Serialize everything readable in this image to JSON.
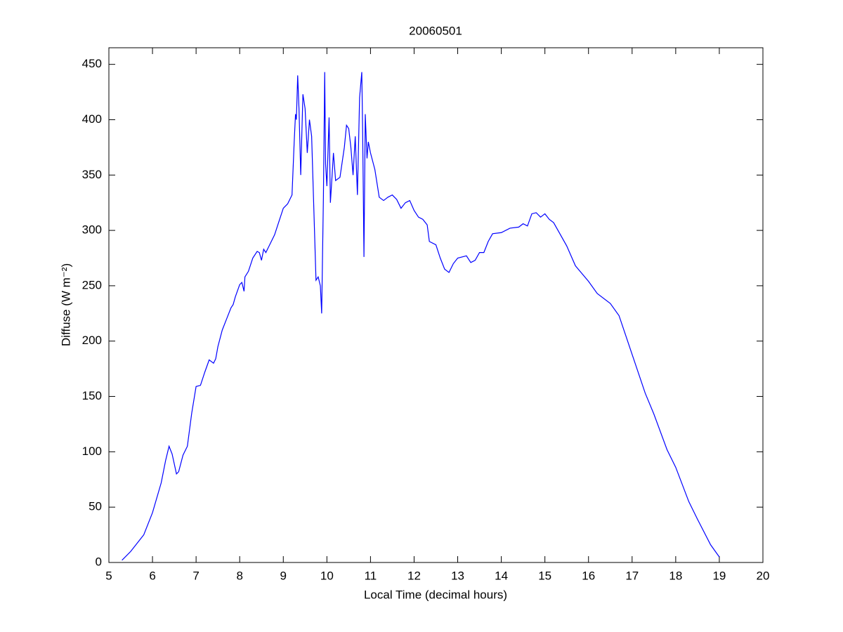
{
  "chart_data": {
    "type": "line",
    "title": "20060501",
    "x_label": "Local Time (decimal hours)",
    "y_label": "Diffuse (W m⁻²)",
    "xlim": [
      5,
      20
    ],
    "ylim": [
      0,
      465
    ],
    "xticks": [
      5,
      6,
      7,
      8,
      9,
      10,
      11,
      12,
      13,
      14,
      15,
      16,
      17,
      18,
      19,
      20
    ],
    "yticks": [
      0,
      50,
      100,
      150,
      200,
      250,
      300,
      350,
      400,
      450
    ],
    "series": [
      {
        "color": "#0000ff",
        "x": [
          5.3,
          5.5,
          5.8,
          6.0,
          6.2,
          6.3,
          6.38,
          6.45,
          6.55,
          6.6,
          6.7,
          6.8,
          6.9,
          7.0,
          7.1,
          7.2,
          7.3,
          7.4,
          7.45,
          7.5,
          7.6,
          7.7,
          7.8,
          7.85,
          7.9,
          8.0,
          8.05,
          8.1,
          8.12,
          8.2,
          8.3,
          8.4,
          8.45,
          8.5,
          8.55,
          8.6,
          8.7,
          8.8,
          8.9,
          9.0,
          9.1,
          9.2,
          9.25,
          9.28,
          9.3,
          9.33,
          9.36,
          9.4,
          9.45,
          9.5,
          9.55,
          9.6,
          9.65,
          9.7,
          9.75,
          9.8,
          9.85,
          9.88,
          9.92,
          9.95,
          9.97,
          10.0,
          10.05,
          10.08,
          10.12,
          10.15,
          10.2,
          10.3,
          10.4,
          10.45,
          10.5,
          10.55,
          10.6,
          10.65,
          10.7,
          10.75,
          10.8,
          10.82,
          10.85,
          10.88,
          10.92,
          10.95,
          11.0,
          11.1,
          11.2,
          11.3,
          11.4,
          11.5,
          11.6,
          11.7,
          11.8,
          11.9,
          12.0,
          12.1,
          12.2,
          12.3,
          12.35,
          12.5,
          12.6,
          12.7,
          12.8,
          12.9,
          13.0,
          13.2,
          13.3,
          13.4,
          13.5,
          13.6,
          13.7,
          13.8,
          14.0,
          14.2,
          14.4,
          14.5,
          14.6,
          14.7,
          14.8,
          14.9,
          15.0,
          15.1,
          15.2,
          15.3,
          15.5,
          15.7,
          16.0,
          16.2,
          16.5,
          16.7,
          17.0,
          17.3,
          17.5,
          17.8,
          18.0,
          18.3,
          18.5,
          18.8,
          19.0
        ],
        "values": [
          2,
          10,
          25,
          45,
          72,
          92,
          105,
          98,
          80,
          82,
          97,
          105,
          135,
          159,
          160,
          172,
          183,
          180,
          184,
          195,
          210,
          220,
          230,
          233,
          240,
          251,
          253,
          245,
          258,
          263,
          275,
          281,
          280,
          273,
          283,
          280,
          288,
          296,
          308,
          320,
          324,
          332,
          380,
          405,
          400,
          440,
          410,
          350,
          423,
          410,
          370,
          400,
          385,
          320,
          255,
          258,
          250,
          225,
          330,
          443,
          360,
          340,
          402,
          325,
          350,
          370,
          345,
          348,
          375,
          395,
          392,
          375,
          350,
          385,
          332,
          420,
          443,
          390,
          276,
          405,
          365,
          380,
          370,
          355,
          330,
          327,
          330,
          332,
          328,
          320,
          325,
          327,
          318,
          312,
          310,
          305,
          290,
          287,
          275,
          265,
          262,
          270,
          275,
          277,
          271,
          273,
          280,
          280,
          290,
          297,
          298,
          302,
          303,
          306,
          304,
          315,
          316,
          312,
          315,
          310,
          307,
          300,
          286,
          268,
          254,
          243,
          234,
          223,
          188,
          153,
          134,
          102,
          86,
          55,
          39,
          16,
          5
        ]
      }
    ]
  }
}
